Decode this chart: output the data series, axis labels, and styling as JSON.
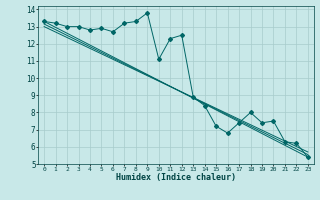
{
  "title": "",
  "xlabel": "Humidex (Indice chaleur)",
  "bg_color": "#c8e8e8",
  "line_color": "#006666",
  "grid_color": "#a8cccc",
  "xlim": [
    -0.5,
    23.5
  ],
  "ylim": [
    5,
    14.2
  ],
  "xticks": [
    0,
    1,
    2,
    3,
    4,
    5,
    6,
    7,
    8,
    9,
    10,
    11,
    12,
    13,
    14,
    15,
    16,
    17,
    18,
    19,
    20,
    21,
    22,
    23
  ],
  "yticks": [
    5,
    6,
    7,
    8,
    9,
    10,
    11,
    12,
    13,
    14
  ],
  "main_x": [
    0,
    1,
    2,
    3,
    4,
    5,
    6,
    7,
    8,
    9,
    10,
    11,
    12,
    13,
    14,
    15,
    16,
    17,
    18,
    19,
    20,
    21,
    22,
    23
  ],
  "main_y": [
    13.3,
    13.2,
    13.0,
    13.0,
    12.8,
    12.9,
    12.7,
    13.2,
    13.3,
    13.8,
    11.1,
    12.3,
    12.5,
    8.9,
    8.4,
    7.2,
    6.8,
    7.4,
    8.0,
    7.4,
    7.5,
    6.3,
    6.2,
    5.4
  ],
  "trend_lines": [
    {
      "x": [
        0,
        23
      ],
      "y": [
        13.3,
        5.4
      ]
    },
    {
      "x": [
        0,
        23
      ],
      "y": [
        13.15,
        5.55
      ]
    },
    {
      "x": [
        0,
        23
      ],
      "y": [
        13.0,
        5.7
      ]
    }
  ]
}
